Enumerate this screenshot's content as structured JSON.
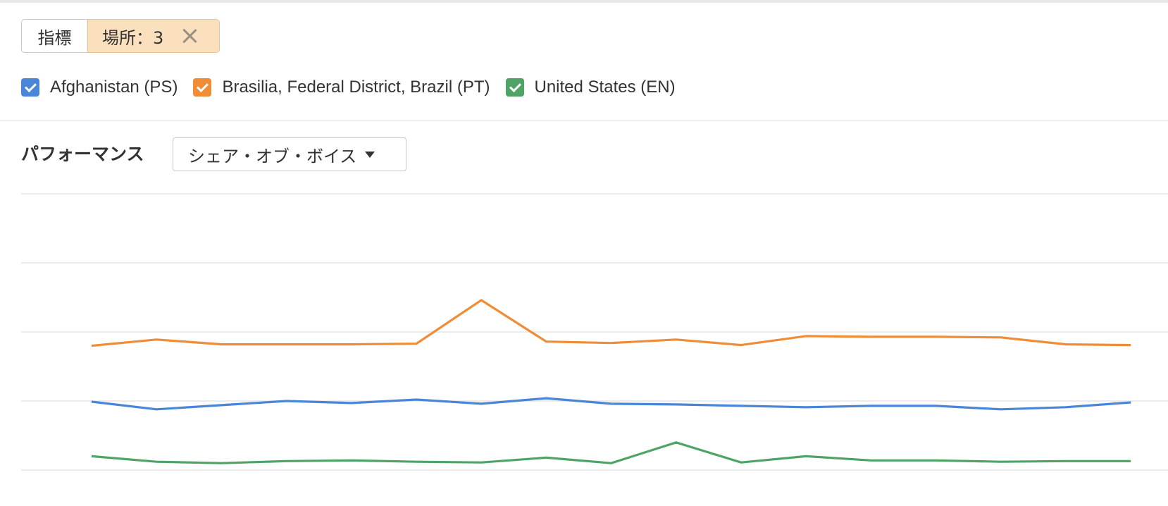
{
  "filter": {
    "metric_label": "指標",
    "location_label": "場所：3"
  },
  "legend": [
    {
      "label": "Afghanistan (PS)",
      "color": "#4a86d8",
      "checked": true
    },
    {
      "label": "Brasilia, Federal District, Brazil (PT)",
      "color": "#f08c36",
      "checked": true
    },
    {
      "label": "United States (EN)",
      "color": "#4ea466",
      "checked": true
    }
  ],
  "performance": {
    "title": "パフォーマンス",
    "dropdown_value": "シェア・オブ・ボイス"
  },
  "colors": {
    "afghanistan": "#4a86d8",
    "brasilia": "#f08c36",
    "united_states": "#4ea466"
  },
  "chart_data": {
    "type": "line",
    "title": "",
    "xlabel": "",
    "ylabel": "",
    "ylim": [
      0,
      40
    ],
    "grid": true,
    "x": [
      1,
      2,
      3,
      4,
      5,
      6,
      7,
      8,
      9,
      10,
      11,
      12,
      13,
      14,
      15,
      16,
      17
    ],
    "series": [
      {
        "key": "brasilia",
        "values": [
          18.0,
          18.9,
          18.2,
          18.2,
          18.2,
          18.3,
          24.6,
          18.6,
          18.4,
          18.9,
          18.1,
          19.4,
          19.3,
          19.3,
          19.2,
          18.2,
          18.1
        ]
      },
      {
        "key": "afghanistan",
        "values": [
          9.9,
          8.8,
          9.4,
          10.0,
          9.7,
          10.2,
          9.6,
          10.4,
          9.6,
          9.5,
          9.3,
          9.1,
          9.3,
          9.3,
          8.8,
          9.1,
          9.8
        ]
      },
      {
        "key": "united_states",
        "values": [
          2.0,
          1.2,
          1.0,
          1.3,
          1.4,
          1.2,
          1.1,
          1.8,
          1.0,
          4.0,
          1.1,
          2.0,
          1.4,
          1.4,
          1.2,
          1.3,
          1.3
        ]
      }
    ]
  }
}
